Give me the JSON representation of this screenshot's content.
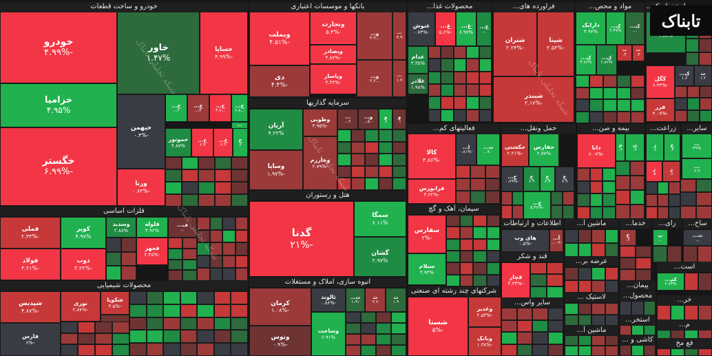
{
  "palette": {
    "red1": "#f23645",
    "red2": "#c73838",
    "red3": "#9c3a3a",
    "red4": "#6e3434",
    "green1": "#21b14f",
    "green2": "#1f8b43",
    "green3": "#2d6a3c",
    "grey": "#3a3c44"
  },
  "watermark": "تابناک",
  "watermark2": "شبکه تحلیلی تابناک",
  "chart_data": {
    "type": "treemap",
    "title": "",
    "sectors": [
      {
        "name": "خودرو و ساخت قطعات",
        "stocks": [
          {
            "name": "خودرو",
            "change": "-۴.۹۹%"
          },
          {
            "name": "خزامیا",
            "change": "۴.۹۵%"
          },
          {
            "name": "خگستر",
            "change": "-۶.۹۹%"
          },
          {
            "name": "خاور",
            "change": "۱.۴۷%"
          },
          {
            "name": "خیهمن",
            "change": "-۰.۴%"
          },
          {
            "name": "ورنا",
            "change": "-۰.۶۳%"
          },
          {
            "name": "خساپا",
            "change": "-۴.۹۹%"
          },
          {
            "name": "خموتور",
            "change": "۴.۸۷%"
          },
          {
            "name": "خ...",
            "change": "۲..."
          },
          {
            "name": "خ...",
            "change": "۴..."
          },
          {
            "name": "خ...",
            "change": "...۴.۷"
          },
          {
            "name": "خ...",
            "change": "...۶.۸"
          },
          {
            "name": "...",
            "change": "...۳"
          },
          {
            "name": "خ...",
            "change": "۶.۹"
          },
          {
            "name": "خ...",
            "change": "۶.۹"
          },
          {
            "name": "خ",
            "change": "۶"
          }
        ]
      },
      {
        "name": "بانکها و موسسات اعتباری",
        "stocks": [
          {
            "name": "وبملت",
            "change": "-۴.۵۱%"
          },
          {
            "name": "وتجارت",
            "change": "-۵.۴%"
          },
          {
            "name": "وبصادر",
            "change": "-۴.۸۷%"
          },
          {
            "name": "وپاسار",
            "change": "-۴.۴۳%"
          },
          {
            "name": "دی",
            "change": "-۴.۴%"
          },
          {
            "name": "و...",
            "change": "...۳.۹"
          },
          {
            "name": "و...",
            "change": "...۲.۶"
          },
          {
            "name": "...",
            "change": "۴.۹"
          },
          {
            "name": "...",
            "change": "۱.۷"
          }
        ]
      },
      {
        "name": "سرمایه گذاریها",
        "stocks": [
          {
            "name": "آریان",
            "change": "۴.۲۲%"
          },
          {
            "name": "وسایا",
            "change": "-۱.۹۷%"
          },
          {
            "name": "وطوبی",
            "change": "-۳.۹۵%"
          },
          {
            "name": "وخارزم",
            "change": "-۲.۷۹%"
          },
          {
            "name": "...",
            "change": "۲..."
          },
          {
            "name": "و...",
            "change": "۵.۰..."
          },
          {
            "name": "و",
            "change": "۶."
          },
          {
            "name": "و",
            "change": "۱."
          }
        ]
      },
      {
        "name": "هتل و رستوران",
        "stocks": [
          {
            "name": "گدنا",
            "change": "-۲۱%"
          },
          {
            "name": "سمگا",
            "change": "۶.۱۱%"
          },
          {
            "name": "گشان",
            "change": "۲.۹۷%"
          }
        ]
      },
      {
        "name": "انبوه سازی، املاک و مستغلات",
        "stocks": [
          {
            "name": "کرمان",
            "change": "-۱.۰۸%"
          },
          {
            "name": "وتوس",
            "change": "-۰.۹%"
          },
          {
            "name": "ثالوند",
            "change": "-۰.۸۶%"
          },
          {
            "name": "وساخت",
            "change": "۶.۹۱%"
          },
          {
            "name": "ث...",
            "change": "۱.۹۱"
          },
          {
            "name": "ث",
            "change": "۲.۷"
          },
          {
            "name": "ث",
            "change": "۱.۹"
          }
        ]
      },
      {
        "name": "فلزات اساسی",
        "stocks": [
          {
            "name": "فملی",
            "change": "-۲.۳۳%"
          },
          {
            "name": "فولاد",
            "change": "-۳.۲۱%"
          },
          {
            "name": "کویر",
            "change": "۴.۹۷%"
          },
          {
            "name": "ذوب",
            "change": "-۳.۲۲%"
          },
          {
            "name": "وسدید",
            "change": "۲.۸۸%"
          },
          {
            "name": "فلوله",
            "change": "۴.۹۶%"
          },
          {
            "name": "فجهز",
            "change": "-۲.۴۵%"
          },
          {
            "name": "ف...",
            "change": "..."
          }
        ]
      },
      {
        "name": "محصولات شیمیایی",
        "stocks": [
          {
            "name": "شپدیس",
            "change": "-۴.۸۷%"
          },
          {
            "name": "فارس",
            "change": "-۶%"
          },
          {
            "name": "نوری",
            "change": "-۲.۸۷%"
          },
          {
            "name": "شکویا",
            "change": "-۳.۵%"
          },
          {
            "name": "شیراز",
            "change": "-۲.۷%"
          }
        ]
      },
      {
        "name": "محصولات غذا...",
        "stocks": [
          {
            "name": "غنوش",
            "change": "-۰.۷۳%"
          },
          {
            "name": "غ...",
            "change": "-۵.۶%"
          },
          {
            "name": "غ...",
            "change": "۶.۹۷%"
          },
          {
            "name": "غ...",
            "change": "..."
          },
          {
            "name": "غدام",
            "change": "۳.۳۵%"
          },
          {
            "name": "غلاذر",
            "change": "۱.۹۸%"
          }
        ]
      },
      {
        "name": "فراورده های...",
        "stocks": [
          {
            "name": "شتران",
            "change": "-۲.۲۴%"
          },
          {
            "name": "شپنا",
            "change": "-۲.۵۳%"
          },
          {
            "name": "شبندر",
            "change": "-۲.۱۷%"
          }
        ]
      },
      {
        "name": "مواد و محص...",
        "stocks": [
          {
            "name": "دارایک",
            "change": "۴.۹۷%"
          },
          {
            "name": "ک...",
            "change": "۲.۴۷%"
          },
          {
            "name": "ک...",
            "change": "..."
          },
          {
            "name": "ک...",
            "change": "۴.۷۶%"
          },
          {
            "name": "ک...",
            "change": "۶.۸۲%"
          },
          {
            "name": "ب",
            "change": "۴."
          },
          {
            "name": "ب",
            "change": "۳."
          }
        ]
      },
      {
        "name": "استخراج ک...",
        "stocks": [
          {
            "name": "کاما",
            "change": "۳.۸۷%"
          },
          {
            "name": "کگل",
            "change": "-۶.۳۳%"
          },
          {
            "name": "فزر",
            "change": "-۳.۰۷%"
          },
          {
            "name": "ک...",
            "change": "۱.۶"
          },
          {
            "name": "ت",
            "change": "۱.۲"
          }
        ]
      },
      {
        "name": "فعالیتهای کم...",
        "stocks": [
          {
            "name": "کالا",
            "change": "-۳.۸۶%"
          },
          {
            "name": "فرابورس",
            "change": "-۴.۲۲%"
          },
          {
            "name": "ا...",
            "change": "-۰.۸۱%"
          },
          {
            "name": "ث...",
            "change": "۷.۰..."
          }
        ]
      },
      {
        "name": "حمل ونقل...",
        "stocks": [
          {
            "name": "حکشتی",
            "change": "-۲.۲۱%"
          },
          {
            "name": "حفارس",
            "change": "۲.۷۷%"
          },
          {
            "name": "ح...",
            "change": "-۰.۷۹%"
          },
          {
            "name": "ح",
            "change": "۶.۹"
          },
          {
            "name": "ح",
            "change": "۶.۹"
          },
          {
            "name": "ح",
            "change": "۶.۹"
          },
          {
            "name": "ح...",
            "change": "-۵.۳۸%"
          }
        ]
      },
      {
        "name": "بیمه و صن...",
        "stocks": [
          {
            "name": "دانا",
            "change": "-۶.۰۷%"
          },
          {
            "name": "م",
            "change": "۶."
          },
          {
            "name": "ن",
            "change": "۳."
          }
        ]
      },
      {
        "name": "زراعت...",
        "stocks": [
          {
            "name": "ز",
            "change": "۶."
          },
          {
            "name": "ج",
            "change": "۶."
          },
          {
            "name": "ز",
            "change": "۵."
          },
          {
            "name": "ز",
            "change": "۶."
          }
        ]
      },
      {
        "name": "سایر...",
        "stocks": [
          {
            "name": "...",
            "change": "۴۹%"
          },
          {
            "name": "...",
            "change": "۶.۹"
          }
        ]
      },
      {
        "name": "سیمان، آهک و گچ",
        "stocks": [
          {
            "name": "سفارس",
            "change": "-۲%"
          },
          {
            "name": "سیلام",
            "change": "۴.۹۳%"
          }
        ]
      },
      {
        "name": "شرکتهای چند رشته ای صنعتی",
        "stocks": [
          {
            "name": "شستا",
            "change": "-۵%"
          },
          {
            "name": "وغدیر",
            "change": "-۲.۵۴%"
          },
          {
            "name": "وبانک",
            "change": "-۱.۳۸%"
          }
        ]
      },
      {
        "name": "اطلاعات و ارتباطات",
        "stocks": [
          {
            "name": "های وب",
            "change": "-۰.۵%"
          },
          {
            "name": "آ...",
            "change": "-۰.۳..."
          }
        ]
      },
      {
        "name": "قند و شکر",
        "stocks": [
          {
            "name": "قچار",
            "change": "-۳.۲۳%"
          }
        ]
      },
      {
        "name": "سایر واس...",
        "stocks": []
      },
      {
        "name": "ماشین آ...",
        "stocks": []
      },
      {
        "name": "عرضه بر...",
        "stocks": []
      },
      {
        "name": "لاستیک ...",
        "stocks": []
      },
      {
        "name": "ماشین آ...",
        "stocks": []
      },
      {
        "name": "خدما...",
        "stocks": [
          {
            "name": "خ",
            "change": "۶."
          }
        ]
      },
      {
        "name": "رای...",
        "stocks": [
          {
            "name": "پ",
            "change": "..."
          }
        ]
      },
      {
        "name": "ساخ...",
        "stocks": [
          {
            "name": "ث...",
            "change": "..."
          }
        ]
      },
      {
        "name": "پیمان...",
        "stocks": []
      },
      {
        "name": "است...",
        "stocks": [
          {
            "name": "کم...",
            "change": "۲.۶۳%"
          }
        ]
      },
      {
        "name": "محصول...",
        "stocks": []
      },
      {
        "name": "خر...",
        "stocks": []
      },
      {
        "name": "استخر...",
        "stocks": []
      },
      {
        "name": "کاشی و ...",
        "stocks": []
      },
      {
        "name": "م...",
        "stocks": []
      },
      {
        "name": "فع مخ",
        "stocks": []
      }
    ]
  }
}
